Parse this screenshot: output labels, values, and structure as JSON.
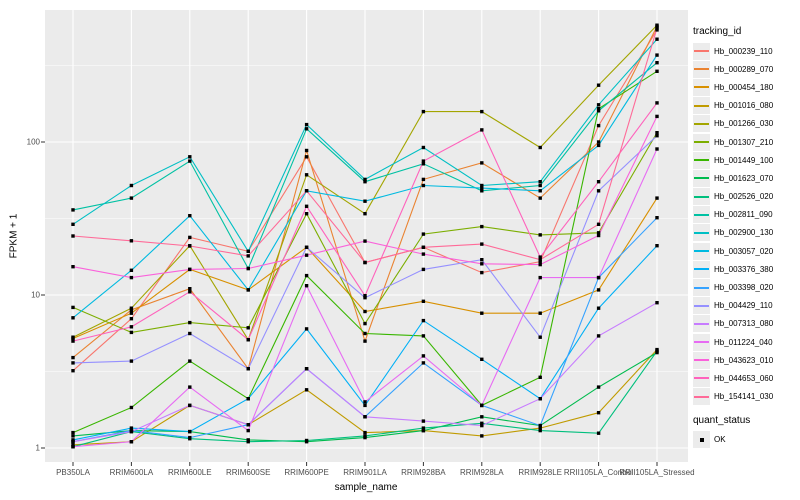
{
  "chart_data": {
    "type": "line",
    "title": "",
    "xlabel": "sample_name",
    "ylabel": "FPKM + 1",
    "y_scale": "log10",
    "ylim": [
      1,
      900
    ],
    "y_ticks": [
      1,
      10,
      100
    ],
    "grid": true,
    "panel_bg": "#ebebeb",
    "grid_color": "#ffffff",
    "tick_color": "#333333",
    "axis_text_color": "#4d4d4d",
    "point_color": "#000000",
    "legend_title": "tracking_id",
    "legend_position": "right",
    "legend2_title": "quant_status",
    "legend2_items": [
      {
        "label": "OK"
      }
    ],
    "categories": [
      "PB350LA",
      "RRIM600LA",
      "RRIM600LE",
      "RRIM600SE",
      "RRIM600PE",
      "RRIM901LA",
      "RRIM928BA",
      "RRIM928LA",
      "RRIM928LE",
      "RRII105LA_Control",
      "RRII105LA_Stressed"
    ],
    "series": [
      {
        "name": "Hb_000239_110",
        "color": "#F8766D",
        "values": [
          3.2,
          7.0,
          23.8,
          19.3,
          80,
          16.3,
          20.5,
          14.0,
          16.5,
          128,
          540
        ]
      },
      {
        "name": "Hb_000289_070",
        "color": "#EA8331",
        "values": [
          3.9,
          8.0,
          11.0,
          3.3,
          88,
          5.0,
          57,
          73,
          43,
          100,
          570
        ]
      },
      {
        "name": "Hb_000454_180",
        "color": "#D89000",
        "values": [
          5.2,
          7.6,
          14.7,
          10.8,
          20.5,
          7.8,
          9.1,
          7.6,
          7.6,
          10.8,
          43
        ]
      },
      {
        "name": "Hb_001016_080",
        "color": "#C09B00",
        "values": [
          1.05,
          1.1,
          1.9,
          1.42,
          2.4,
          1.26,
          1.3,
          1.2,
          1.35,
          1.7,
          4.4
        ]
      },
      {
        "name": "Hb_001266_030",
        "color": "#A3A500",
        "values": [
          5.3,
          8.2,
          21.0,
          5.1,
          61,
          34,
          158,
          158,
          92,
          235,
          580
        ]
      },
      {
        "name": "Hb_001307_210",
        "color": "#7CAE00",
        "values": [
          8.3,
          5.7,
          6.6,
          6.1,
          34,
          6.5,
          25,
          28,
          24.7,
          25.5,
          115
        ]
      },
      {
        "name": "Hb_001449_100",
        "color": "#39B600",
        "values": [
          1.26,
          1.84,
          3.7,
          2.1,
          13.4,
          5.6,
          5.4,
          1.9,
          2.9,
          165,
          290
        ]
      },
      {
        "name": "Hb_001623_070",
        "color": "#00BB4E",
        "values": [
          1.2,
          1.3,
          1.28,
          1.13,
          1.1,
          1.17,
          1.3,
          1.6,
          1.4,
          2.5,
          4.2
        ]
      },
      {
        "name": "Hb_002526_020",
        "color": "#00BF7D",
        "values": [
          1.02,
          1.28,
          1.15,
          1.1,
          1.12,
          1.2,
          1.35,
          1.45,
          1.3,
          1.25,
          4.3
        ]
      },
      {
        "name": "Hb_002811_090",
        "color": "#00C1A3",
        "values": [
          36,
          43,
          75,
          14.9,
          122,
          55,
          72,
          48,
          52,
          160,
          330
        ]
      },
      {
        "name": "Hb_002900_130",
        "color": "#00BFC4",
        "values": [
          29,
          52,
          80,
          19.3,
          130,
          57,
          92,
          52,
          55,
          175,
          470
        ]
      },
      {
        "name": "Hb_003057_020",
        "color": "#00BAE0",
        "values": [
          7.1,
          14.5,
          33,
          10.8,
          48,
          41,
          52,
          50,
          48,
          95,
          370
        ]
      },
      {
        "name": "Hb_003376_380",
        "color": "#00B0F6",
        "values": [
          1.13,
          1.35,
          1.28,
          2.1,
          6.0,
          1.9,
          6.8,
          3.8,
          2.1,
          8.2,
          21
        ]
      },
      {
        "name": "Hb_003398_020",
        "color": "#35A2FF",
        "values": [
          1.1,
          1.3,
          1.17,
          1.42,
          3.3,
          1.6,
          3.6,
          1.9,
          1.4,
          13,
          32
        ]
      },
      {
        "name": "Hb_004429_110",
        "color": "#9590FF",
        "values": [
          3.6,
          3.7,
          5.6,
          3.3,
          20.5,
          9.6,
          14.7,
          17.0,
          5.3,
          48,
          110
        ]
      },
      {
        "name": "Hb_007313_080",
        "color": "#C77CFF",
        "values": [
          1.1,
          1.28,
          1.9,
          1.42,
          3.3,
          1.6,
          1.5,
          1.4,
          2.1,
          5.4,
          8.9
        ]
      },
      {
        "name": "Hb_011224_040",
        "color": "#E76BF3",
        "values": [
          1.02,
          1.1,
          2.5,
          1.3,
          11.5,
          2.0,
          4.0,
          1.9,
          13.0,
          13,
          90
        ]
      },
      {
        "name": "Hb_043623_010",
        "color": "#FA62DB",
        "values": [
          15.3,
          13.0,
          14.7,
          14.9,
          18.2,
          22.5,
          18.5,
          16.0,
          15.8,
          24.5,
          147
        ]
      },
      {
        "name": "Hb_044653_060",
        "color": "#FF62BC",
        "values": [
          5.0,
          6.2,
          10.5,
          5.1,
          38,
          9.9,
          75,
          120,
          17.7,
          55,
          180
        ]
      },
      {
        "name": "Hb_154141_030",
        "color": "#FF6A98",
        "values": [
          24.3,
          22.6,
          20.9,
          18.0,
          48,
          16.3,
          20.5,
          21.5,
          17.0,
          29,
          555
        ]
      }
    ]
  }
}
